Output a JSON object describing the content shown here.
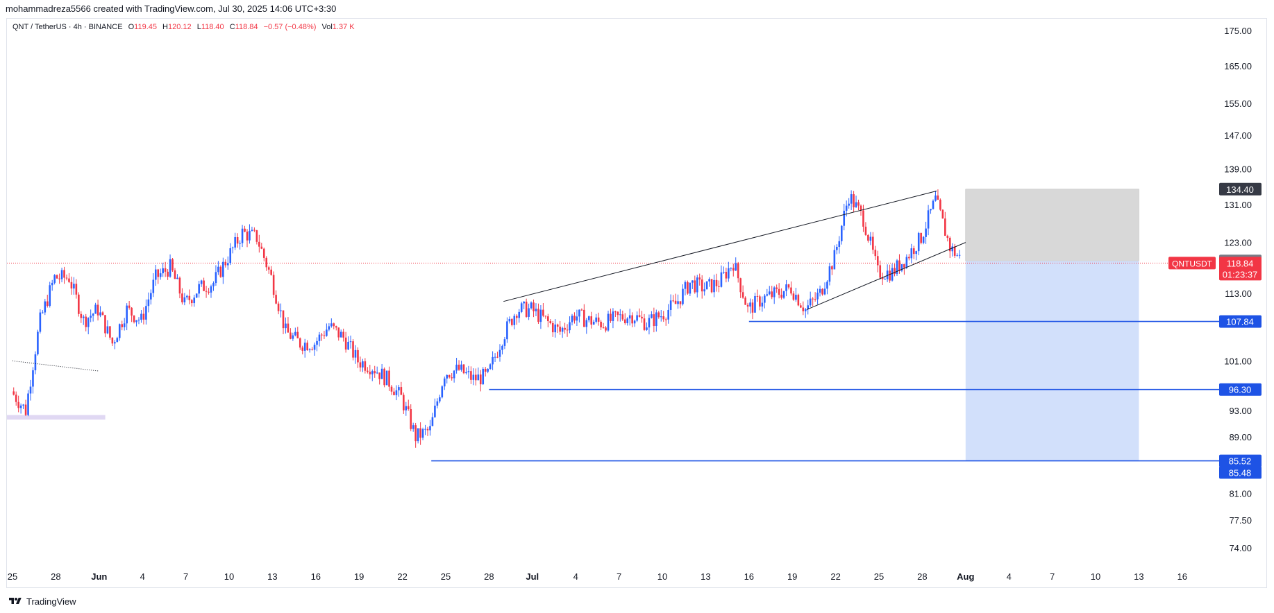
{
  "header": {
    "credit": "mohammadreza5566 created with TradingView.com, Jul 30, 2025 14:06 UTC+3:30"
  },
  "legend": {
    "symbol": "QNT / TetherUS · 4h · BINANCE",
    "open_label": "O",
    "open": "119.45",
    "high_label": "H",
    "high": "120.12",
    "low_label": "L",
    "low": "118.40",
    "close_label": "C",
    "close": "118.84",
    "change": "−0.57 (−0.48%)",
    "vol_label": "Vol",
    "vol": "1.37 K"
  },
  "footer": {
    "brand": "TradingView"
  },
  "chart_data": {
    "type": "candlestick",
    "symbol": "QNTUSDT",
    "y_scale": "log",
    "yaxis_ticks": [
      175.0,
      165.0,
      155.0,
      147.0,
      139.0,
      131.0,
      123.0,
      113.0,
      101.0,
      93.0,
      89.0,
      81.0,
      77.5,
      74.0
    ],
    "xaxis_ticks": [
      "25",
      "28",
      "Jun",
      "4",
      "7",
      "10",
      "13",
      "16",
      "19",
      "22",
      "25",
      "28",
      "Jul",
      "4",
      "7",
      "10",
      "13",
      "16",
      "19",
      "22",
      "25",
      "28",
      "Aug",
      "4",
      "7",
      "10",
      "13",
      "16"
    ],
    "price_series_anchors": [
      {
        "date": "May 25",
        "close": 96.0
      },
      {
        "date": "May 26",
        "close": 93.0
      },
      {
        "date": "May 27",
        "close": 108.0
      },
      {
        "date": "May 28",
        "close": 116.0
      },
      {
        "date": "May 29",
        "close": 116.0
      },
      {
        "date": "May 30",
        "close": 108.0
      },
      {
        "date": "May 31",
        "close": 110.0
      },
      {
        "date": "Jun 1",
        "close": 104.0
      },
      {
        "date": "Jun 2",
        "close": 110.0
      },
      {
        "date": "Jun 3",
        "close": 108.0
      },
      {
        "date": "Jun 4",
        "close": 116.0
      },
      {
        "date": "Jun 5",
        "close": 118.0
      },
      {
        "date": "Jun 6",
        "close": 111.0
      },
      {
        "date": "Jun 7",
        "close": 114.0
      },
      {
        "date": "Jun 8",
        "close": 115.0
      },
      {
        "date": "Jun 9",
        "close": 120.0
      },
      {
        "date": "Jun 10",
        "close": 125.0
      },
      {
        "date": "Jun 11",
        "close": 124.0
      },
      {
        "date": "Jun 12",
        "close": 116.0
      },
      {
        "date": "Jun 13",
        "close": 106.0
      },
      {
        "date": "Jun 14",
        "close": 104.0
      },
      {
        "date": "Jun 15",
        "close": 104.0
      },
      {
        "date": "Jun 16",
        "close": 107.0
      },
      {
        "date": "Jun 17",
        "close": 105.0
      },
      {
        "date": "Jun 18",
        "close": 101.0
      },
      {
        "date": "Jun 19",
        "close": 100.0
      },
      {
        "date": "Jun 20",
        "close": 98.0
      },
      {
        "date": "Jun 21",
        "close": 95.0
      },
      {
        "date": "Jun 22",
        "close": 89.0
      },
      {
        "date": "Jun 23",
        "close": 90.0
      },
      {
        "date": "Jun 24",
        "close": 99.0
      },
      {
        "date": "Jun 25",
        "close": 99.5
      },
      {
        "date": "Jun 26",
        "close": 98.0
      },
      {
        "date": "Jun 27",
        "close": 98.5
      },
      {
        "date": "Jun 28",
        "close": 105.0
      },
      {
        "date": "Jun 29",
        "close": 110.0
      },
      {
        "date": "Jun 30",
        "close": 110.0
      },
      {
        "date": "Jul 1",
        "close": 108.0
      },
      {
        "date": "Jul 2",
        "close": 106.0
      },
      {
        "date": "Jul 3",
        "close": 109.0
      },
      {
        "date": "Jul 4",
        "close": 108.0
      },
      {
        "date": "Jul 5",
        "close": 107.5
      },
      {
        "date": "Jul 6",
        "close": 108.5
      },
      {
        "date": "Jul 7",
        "close": 109.0
      },
      {
        "date": "Jul 8",
        "close": 107.5
      },
      {
        "date": "Jul 9",
        "close": 109.0
      },
      {
        "date": "Jul 10",
        "close": 111.0
      },
      {
        "date": "Jul 11",
        "close": 115.0
      },
      {
        "date": "Jul 12",
        "close": 114.0
      },
      {
        "date": "Jul 13",
        "close": 115.0
      },
      {
        "date": "Jul 14",
        "close": 119.0
      },
      {
        "date": "Jul 15",
        "close": 110.0
      },
      {
        "date": "Jul 16",
        "close": 112.0
      },
      {
        "date": "Jul 17",
        "close": 113.0
      },
      {
        "date": "Jul 18",
        "close": 114.0
      },
      {
        "date": "Jul 19",
        "close": 110.0
      },
      {
        "date": "Jul 20",
        "close": 113.0
      },
      {
        "date": "Jul 21",
        "close": 120.0
      },
      {
        "date": "Jul 22",
        "close": 133.0
      },
      {
        "date": "Jul 23",
        "close": 128.0
      },
      {
        "date": "Jul 24",
        "close": 117.0
      },
      {
        "date": "Jul 25",
        "close": 117.0
      },
      {
        "date": "Jul 26",
        "close": 120.0
      },
      {
        "date": "Jul 27",
        "close": 124.0
      },
      {
        "date": "Jul 28",
        "close": 132.0
      },
      {
        "date": "Jul 29",
        "close": 122.0
      },
      {
        "date": "Jul 30",
        "close": 118.84
      }
    ],
    "trendlines": [
      {
        "name": "rising-wedge-upper",
        "from": {
          "date": "Jun 28",
          "price": 111.5
        },
        "to": {
          "date": "Jul 28",
          "price": 134.0
        }
      },
      {
        "name": "rising-wedge-lower",
        "from": {
          "date": "Jul 19",
          "price": 110.0
        },
        "to": {
          "date": "Jul 30",
          "price": 123.0
        }
      },
      {
        "name": "old-dotted-trendline",
        "from": {
          "date": "May 25",
          "price": 101.0
        },
        "to": {
          "date": "May 31",
          "price": 99.3
        }
      }
    ],
    "support_lines": [
      {
        "from_date": "Jul 15",
        "price": 107.84,
        "label": "107.84"
      },
      {
        "from_date": "Jun 27",
        "price": 96.3,
        "label": "96.30"
      },
      {
        "from_date": "Jun 23",
        "price": 85.52,
        "label": "85.52"
      }
    ],
    "position": {
      "type": "short",
      "entry": 119.27,
      "stop": 134.4,
      "target": 85.48,
      "from_date": "Jul 30",
      "to_date": "Aug 11"
    },
    "price_labels": {
      "symbol": "QNTUSDT",
      "last": "118.84",
      "countdown": "01:23:37",
      "stop": "134.40",
      "entry": "119.27",
      "target": "85.48"
    },
    "zones": [
      {
        "name": "demand-zone",
        "from_date": "May 25",
        "to_date": "Jun 1",
        "price_low": 91.6,
        "price_high": 92.3
      }
    ],
    "colors": {
      "up": "#2962ff",
      "down": "#f23645",
      "support": "#1e53e5",
      "stop_zone": "#d6d6d6",
      "target_zone": "#d2e0fb",
      "demand_zone": "#e0d8f3",
      "axis_text": "#131722",
      "grid_border": "#e0e3eb"
    }
  }
}
